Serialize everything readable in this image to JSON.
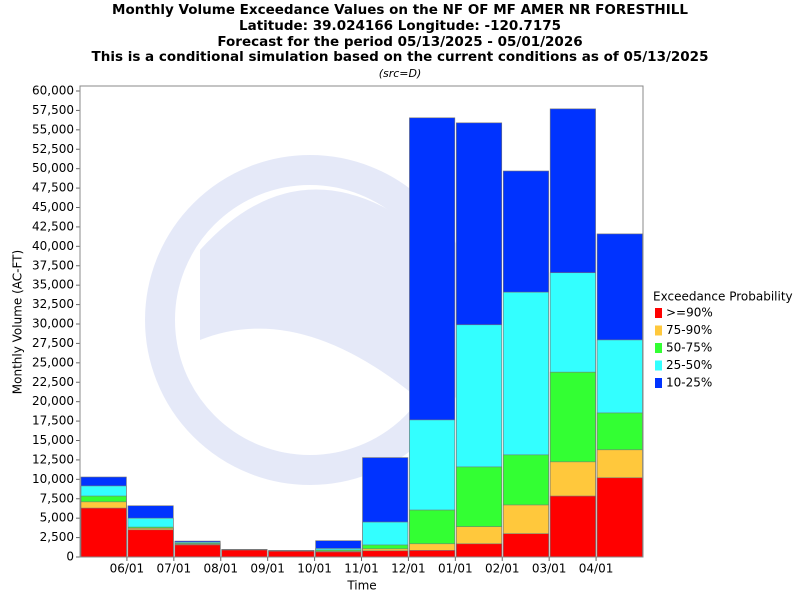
{
  "chart_data": {
    "type": "bar",
    "overlay": true,
    "title": [
      "Monthly Volume Exceedance Values on the NF OF MF AMER NR FORESTHILL",
      "Latitude: 39.024166 Longitude: -120.7175",
      "Forecast for the period 05/13/2025 - 05/01/2026",
      "This is a conditional simulation based on the current conditions as of 05/13/2025"
    ],
    "subtitle": "(src=D)",
    "y_label": "Monthly Volume (AC-FT)",
    "x_label": "Time",
    "legend_title": "Exceedance Probability",
    "xtick_labels": [
      "06/01",
      "07/01",
      "08/01",
      "09/01",
      "10/01",
      "11/01",
      "12/01",
      "01/01",
      "02/01",
      "03/01",
      "04/01"
    ],
    "series": [
      {
        "name": ">=90%",
        "color": "#ff0000",
        "values": [
          6300,
          3500,
          1550,
          900,
          750,
          650,
          800,
          850,
          1700,
          3000,
          7850,
          10200
        ]
      },
      {
        "name": "75-90%",
        "color": "#ffc83c",
        "values": [
          7100,
          3700,
          1650,
          920,
          770,
          750,
          1050,
          1700,
          3900,
          6700,
          12250,
          13800
        ]
      },
      {
        "name": "50-75%",
        "color": "#33ff33",
        "values": [
          7850,
          3850,
          1750,
          940,
          790,
          900,
          1550,
          6050,
          11600,
          13150,
          23800,
          18550
        ]
      },
      {
        "name": "25-50%",
        "color": "#33ffff",
        "values": [
          9150,
          5000,
          1900,
          960,
          810,
          1100,
          4500,
          17650,
          29900,
          34100,
          36600,
          27950
        ]
      },
      {
        "name": "10-25%",
        "color": "#0033ff",
        "values": [
          10300,
          6600,
          2050,
          980,
          850,
          2100,
          12800,
          56550,
          55900,
          49700,
          57700,
          41600
        ]
      }
    ],
    "ylim": [
      0,
      60000
    ],
    "yticks": [
      0,
      {
        "value": 2500,
        "label": "2,500"
      },
      {
        "value": 5000,
        "label": "5,000"
      },
      {
        "value": 7500,
        "label": "7,500"
      },
      {
        "value": 10000,
        "label": "10,000"
      },
      {
        "value": 12500,
        "label": "12,500"
      },
      {
        "value": 15000,
        "label": "15,000"
      },
      {
        "value": 17500,
        "label": "17,500"
      },
      {
        "value": 20000,
        "label": "20,000"
      },
      {
        "value": 22500,
        "label": "22,500"
      },
      {
        "value": 25000,
        "label": "25,000"
      },
      {
        "value": 27500,
        "label": "27,500"
      },
      {
        "value": 30000,
        "label": "30,000"
      },
      {
        "value": 32500,
        "label": "32,500"
      },
      {
        "value": 35000,
        "label": "35,000"
      },
      {
        "value": 37500,
        "label": "37,500"
      },
      {
        "value": 40000,
        "label": "40,000"
      },
      {
        "value": 42500,
        "label": "42,500"
      },
      {
        "value": 45000,
        "label": "45,000"
      },
      {
        "value": 47500,
        "label": "47,500"
      },
      {
        "value": 50000,
        "label": "50,000"
      },
      {
        "value": 52500,
        "label": "52,500"
      },
      {
        "value": 55000,
        "label": "55,000"
      },
      {
        "value": 57500,
        "label": "57,500"
      },
      {
        "value": 60000,
        "label": "60,000"
      }
    ]
  }
}
